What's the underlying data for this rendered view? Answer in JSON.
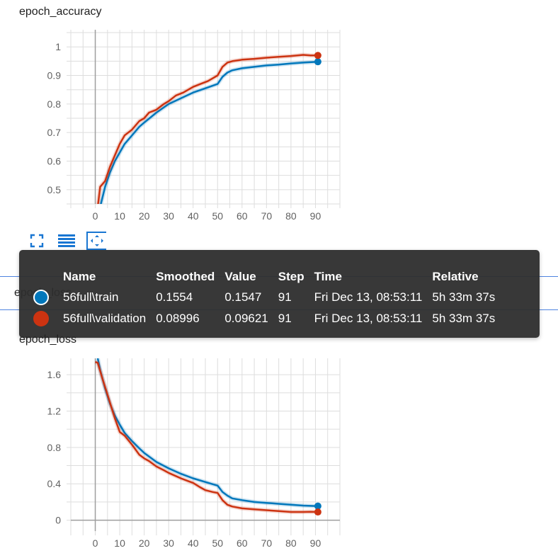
{
  "toolbar": {
    "fullscreen_icon": "fullscreen-icon",
    "data_table_icon": "data-table-icon",
    "fit_domain_icon": "fit-domain-icon"
  },
  "tooltip": {
    "headers": [
      "Name",
      "Smoothed",
      "Value",
      "Step",
      "Time",
      "Relative"
    ],
    "rows": [
      {
        "color": "#0077bb",
        "name": "56full\\train",
        "smoothed": "0.1554",
        "value": "0.1547",
        "step": "91",
        "time": "Fri Dec 13, 08:53:11",
        "relative": "5h 33m 37s"
      },
      {
        "color": "#cc3311",
        "name": "56full\\validation",
        "smoothed": "0.08996",
        "value": "0.09621",
        "step": "91",
        "time": "Fri Dec 13, 08:53:11",
        "relative": "5h 33m 37s"
      }
    ]
  },
  "hidden_card_title": "epoch_loss",
  "chart_data": [
    {
      "type": "line",
      "title": "epoch_accuracy",
      "xlabel": "",
      "ylabel": "",
      "xlim": [
        -10,
        100
      ],
      "ylim": [
        0.45,
        1.06
      ],
      "xticks": [
        0,
        10,
        20,
        30,
        40,
        50,
        60,
        70,
        80,
        90
      ],
      "yticks": [
        0.5,
        0.6,
        0.7,
        0.8,
        0.9,
        1
      ],
      "ytick_labels": [
        "0.5",
        "0.6",
        "0.7",
        "0.8",
        "0.9",
        "1"
      ],
      "grid": true,
      "series": [
        {
          "name": "56full\\train",
          "color": "#0077bb",
          "x": [
            2,
            4,
            6,
            8,
            10,
            12,
            15,
            18,
            20,
            25,
            30,
            35,
            40,
            45,
            50,
            52,
            54,
            56,
            60,
            65,
            70,
            75,
            80,
            85,
            91
          ],
          "y": [
            0.44,
            0.51,
            0.56,
            0.6,
            0.63,
            0.66,
            0.69,
            0.72,
            0.735,
            0.77,
            0.8,
            0.82,
            0.84,
            0.855,
            0.87,
            0.895,
            0.91,
            0.918,
            0.925,
            0.93,
            0.935,
            0.938,
            0.942,
            0.945,
            0.948
          ]
        },
        {
          "name": "56full\\validation",
          "color": "#cc3311",
          "x": [
            1,
            2,
            4,
            6,
            8,
            10,
            12,
            15,
            18,
            20,
            22,
            25,
            28,
            30,
            33,
            36,
            38,
            40,
            43,
            46,
            48,
            50,
            52,
            54,
            56,
            60,
            65,
            70,
            75,
            80,
            85,
            88,
            91
          ],
          "y": [
            0.44,
            0.51,
            0.53,
            0.58,
            0.62,
            0.66,
            0.69,
            0.71,
            0.74,
            0.75,
            0.77,
            0.78,
            0.8,
            0.81,
            0.83,
            0.84,
            0.85,
            0.86,
            0.87,
            0.88,
            0.89,
            0.9,
            0.93,
            0.945,
            0.95,
            0.955,
            0.958,
            0.962,
            0.965,
            0.968,
            0.972,
            0.97,
            0.97
          ]
        }
      ],
      "end_markers": [
        {
          "series": "56full\\train",
          "x": 91,
          "y": 0.948
        },
        {
          "series": "56full\\validation",
          "x": 91,
          "y": 0.97
        }
      ]
    },
    {
      "type": "line",
      "title": "epoch_loss",
      "xlabel": "",
      "ylabel": "",
      "xlim": [
        -10,
        100
      ],
      "ylim": [
        -0.12,
        1.78
      ],
      "xticks": [
        0,
        10,
        20,
        30,
        40,
        50,
        60,
        70,
        80,
        90
      ],
      "yticks": [
        0,
        0.4,
        0.8,
        1.2,
        1.6
      ],
      "ytick_labels": [
        "0",
        "0.4",
        "0.8",
        "1.2",
        "1.6"
      ],
      "grid": true,
      "series": [
        {
          "name": "56full\\train",
          "color": "#0077bb",
          "x": [
            1,
            2,
            4,
            6,
            8,
            10,
            12,
            15,
            18,
            20,
            25,
            30,
            35,
            40,
            45,
            50,
            52,
            54,
            56,
            60,
            65,
            70,
            75,
            80,
            85,
            91
          ],
          "y": [
            1.78,
            1.65,
            1.45,
            1.28,
            1.15,
            1.05,
            0.96,
            0.87,
            0.79,
            0.74,
            0.64,
            0.57,
            0.51,
            0.46,
            0.42,
            0.38,
            0.31,
            0.27,
            0.24,
            0.22,
            0.2,
            0.19,
            0.18,
            0.17,
            0.16,
            0.155
          ]
        },
        {
          "name": "56full\\validation",
          "color": "#cc3311",
          "x": [
            0,
            1,
            3,
            5,
            8,
            10,
            12,
            15,
            18,
            20,
            22,
            25,
            28,
            30,
            35,
            38,
            40,
            43,
            45,
            48,
            50,
            52,
            54,
            56,
            60,
            65,
            70,
            75,
            80,
            85,
            88,
            91
          ],
          "y": [
            1.74,
            1.73,
            1.55,
            1.38,
            1.12,
            0.97,
            0.93,
            0.83,
            0.72,
            0.68,
            0.65,
            0.59,
            0.55,
            0.52,
            0.46,
            0.43,
            0.41,
            0.36,
            0.33,
            0.31,
            0.3,
            0.22,
            0.17,
            0.15,
            0.13,
            0.12,
            0.11,
            0.1,
            0.09,
            0.09,
            0.092,
            0.09
          ]
        }
      ],
      "end_markers": [
        {
          "series": "56full\\train",
          "x": 91,
          "y": 0.155
        },
        {
          "series": "56full\\validation",
          "x": 91,
          "y": 0.09
        }
      ]
    }
  ]
}
